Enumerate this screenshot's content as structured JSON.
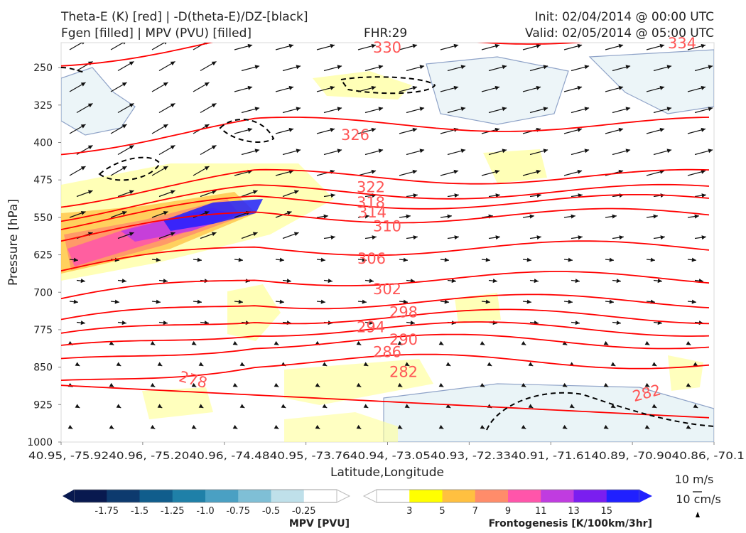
{
  "header": {
    "title_left_1": "Theta-E (K) [red] | -D(theta-E)/DZ-[black]",
    "title_left_2": "Fgen [filled] | MPV (PVU) [filled]",
    "fhr": "FHR:29",
    "init": "Init: 02/04/2014 @ 00:00 UTC",
    "valid": "Valid: 02/05/2014 @ 05:00 UTC"
  },
  "chart_data": {
    "type": "cross-section",
    "xlabel": "Latitude,Longitude",
    "ylabel": "Pressure [hPa]",
    "x_ticks": [
      "40.95, -75.92",
      "40.96, -75.20",
      "40.96, -74.48",
      "40.95, -73.76",
      "40.94, -73.05",
      "40.93, -72.33",
      "40.91, -71.61",
      "40.89, -70.90",
      "40.86, -70.1"
    ],
    "x_tick_first": "40.95, -75.92",
    "y_ticks": [
      250,
      325,
      400,
      475,
      550,
      625,
      700,
      775,
      850,
      925,
      1000
    ],
    "ylim": [
      1000,
      200
    ],
    "theta_e_contours": [
      {
        "label": "330",
        "p": 210
      },
      {
        "label": "326",
        "p": 385
      },
      {
        "label": "322",
        "p": 490
      },
      {
        "label": "318",
        "p": 520
      },
      {
        "label": "314",
        "p": 540
      },
      {
        "label": "310",
        "p": 568
      },
      {
        "label": "306",
        "p": 633
      },
      {
        "label": "302",
        "p": 694
      },
      {
        "label": "298",
        "p": 740
      },
      {
        "label": "294",
        "p": 770
      },
      {
        "label": "290",
        "p": 795
      },
      {
        "label": "286",
        "p": 820
      },
      {
        "label": "282",
        "p": 860
      },
      {
        "label": "278",
        "p": 875
      }
    ],
    "edge_labels": {
      "top_right": "334",
      "low_right": "282",
      "low_left": "278"
    },
    "mpv_colorbar": {
      "title": "MPV [PVU]",
      "ticks": [
        "-1.75",
        "-1.5",
        "-1.25",
        "-1.0",
        "-0.75",
        "-0.5",
        "-0.25"
      ],
      "colors": [
        "#08194f",
        "#0d3a6e",
        "#105d8c",
        "#1f80a8",
        "#4aa0c3",
        "#7fbfd6",
        "#bfe0ea",
        "#ffffff"
      ]
    },
    "fgen_colorbar": {
      "title": "Frontogenesis [K/100km/3hr]",
      "ticks": [
        "3",
        "5",
        "7",
        "9",
        "11",
        "13",
        "15"
      ],
      "colors": [
        "#ffffff",
        "#ffff00",
        "#ffc040",
        "#ff8c6a",
        "#ff55aa",
        "#c03ce0",
        "#7a1ef0",
        "#2020ff"
      ]
    },
    "vector_reference": {
      "horizontal": "10 m/s",
      "vertical": "10 cm/s"
    },
    "colors": {
      "theta_e": "#ff0000",
      "theta_e_label": "#ff5555",
      "ddz": "#000000",
      "mpv_outline": "#8fa3c8"
    }
  }
}
